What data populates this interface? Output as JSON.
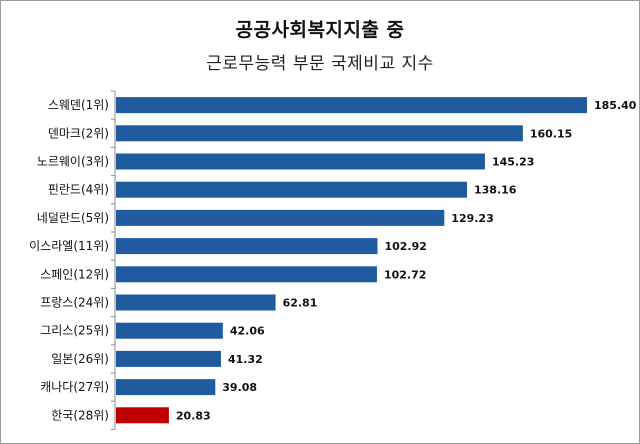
{
  "chart_data": {
    "type": "bar",
    "orientation": "horizontal",
    "title": "공공사회복지지출 중",
    "subtitle": "근로무능력 부문 국제비교 지수",
    "categories": [
      "스웨덴(1위)",
      "덴마크(2위)",
      "노르웨이(3위)",
      "핀란드(4위)",
      "네덜란드(5위)",
      "이스라엘(11위)",
      "스페인(12위)",
      "프랑스(24위)",
      "그리스(25위)",
      "일본(26위)",
      "캐나다(27위)",
      "한국(28위)"
    ],
    "values": [
      185.4,
      160.15,
      145.23,
      138.16,
      129.23,
      102.92,
      102.72,
      62.81,
      42.06,
      41.32,
      39.08,
      20.83
    ],
    "value_labels": [
      "185.40",
      "160.15",
      "145.23",
      "138.16",
      "129.23",
      "102.92",
      "102.72",
      "62.81",
      "42.06",
      "41.32",
      "39.08",
      "20.83"
    ],
    "xlim": [
      0,
      185.4
    ],
    "grid": false,
    "legend": "none",
    "colors": {
      "default": "#1f5b9e",
      "highlight": "#c00000",
      "highlight_category": "한국(28위)"
    }
  }
}
